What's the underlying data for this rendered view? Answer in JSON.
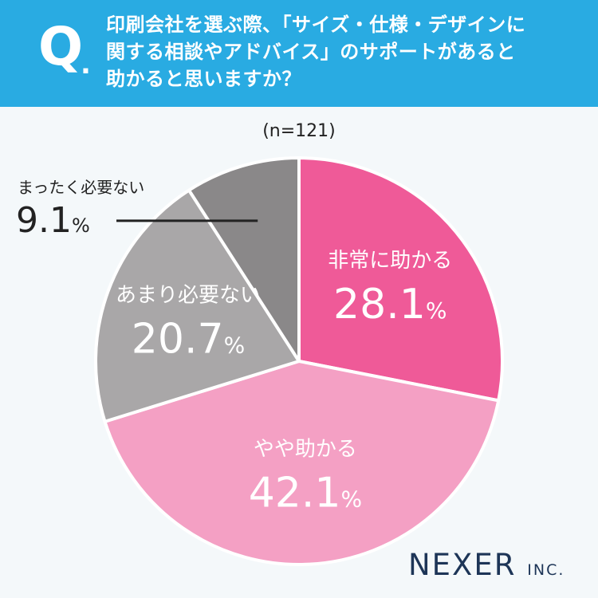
{
  "header": {
    "q_label": "Q",
    "q_dot": ".",
    "question_lines": [
      "印刷会社を選ぶ際、「サイズ・仕様・デザインに",
      "関する相談やアドバイス」のサポートがあると",
      "助かると思いますか？"
    ]
  },
  "sample_size": "(n=121)",
  "brand": {
    "name": "NEXER",
    "suffix": "INC."
  },
  "chart_data": {
    "type": "pie",
    "title": "",
    "sample": "(n=121)",
    "unit": "%",
    "start": "12 o'clock, clockwise",
    "slices": [
      {
        "label": "非常に助かる",
        "value": 28.1,
        "value_text": "28.1",
        "color": "#ef5a98",
        "text_color": "#ffffff"
      },
      {
        "label": "やや助かる",
        "value": 42.1,
        "value_text": "42.1",
        "color": "#f4a0c4",
        "text_color": "#ffffff"
      },
      {
        "label": "あまり必要ない",
        "value": 20.7,
        "value_text": "20.7",
        "color": "#a9a7a8",
        "text_color": "#ffffff"
      },
      {
        "label": "まったく必要ない",
        "value": 9.1,
        "value_text": "9.1",
        "color": "#8a8889",
        "text_color": "#222222",
        "callout": true
      }
    ]
  },
  "colors": {
    "header_bg": "#29abe2",
    "page_bg": "#f4f8fa",
    "brand": "#1d3557",
    "leader_line": "#222222"
  }
}
